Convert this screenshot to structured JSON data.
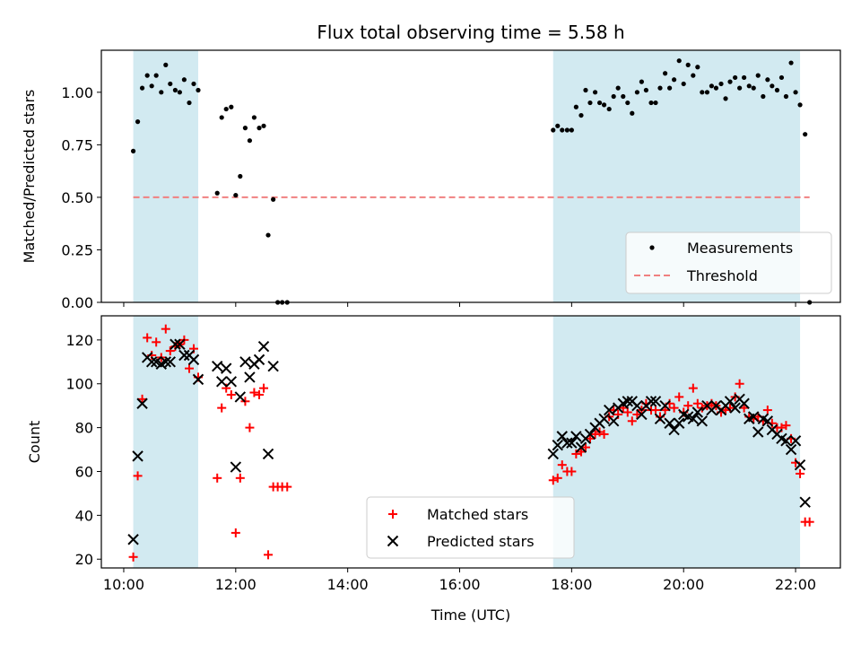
{
  "chart_data": [
    {
      "type": "scatter",
      "title": "Flux total observing time = 5.58 h",
      "xlabel": "",
      "ylabel": "Matched/Predicted stars",
      "xlim": [
        9.6,
        22.8
      ],
      "ylim": [
        0.0,
        1.2
      ],
      "yticks": [
        0.0,
        0.25,
        0.5,
        0.75,
        1.0
      ],
      "ytick_labels": [
        "0.00",
        "0.25",
        "0.50",
        "0.75",
        "1.00"
      ],
      "shaded_spans": [
        [
          10.17,
          11.33
        ],
        [
          17.67,
          22.08
        ]
      ],
      "shade_color": "#add8e6",
      "legend": {
        "location": "lower-right"
      },
      "series": [
        {
          "name": "Measurements",
          "kind": "scatter",
          "marker": "dot",
          "color": "#000000",
          "points": [
            [
              10.17,
              0.72
            ],
            [
              10.25,
              0.86
            ],
            [
              10.33,
              1.02
            ],
            [
              10.42,
              1.08
            ],
            [
              10.5,
              1.03
            ],
            [
              10.58,
              1.08
            ],
            [
              10.67,
              1.0
            ],
            [
              10.75,
              1.13
            ],
            [
              10.83,
              1.04
            ],
            [
              10.92,
              1.01
            ],
            [
              11.0,
              1.0
            ],
            [
              11.08,
              1.06
            ],
            [
              11.17,
              0.95
            ],
            [
              11.25,
              1.04
            ],
            [
              11.33,
              1.01
            ],
            [
              11.67,
              0.52
            ],
            [
              11.75,
              0.88
            ],
            [
              11.83,
              0.92
            ],
            [
              11.92,
              0.93
            ],
            [
              12.0,
              0.51
            ],
            [
              12.08,
              0.6
            ],
            [
              12.17,
              0.83
            ],
            [
              12.25,
              0.77
            ],
            [
              12.33,
              0.88
            ],
            [
              12.42,
              0.83
            ],
            [
              12.5,
              0.84
            ],
            [
              12.58,
              0.32
            ],
            [
              12.67,
              0.49
            ],
            [
              12.75,
              0.0
            ],
            [
              12.83,
              0.0
            ],
            [
              12.92,
              0.0
            ],
            [
              17.67,
              0.82
            ],
            [
              17.75,
              0.84
            ],
            [
              17.83,
              0.82
            ],
            [
              17.92,
              0.82
            ],
            [
              18.0,
              0.82
            ],
            [
              18.08,
              0.93
            ],
            [
              18.17,
              0.89
            ],
            [
              18.25,
              1.01
            ],
            [
              18.33,
              0.95
            ],
            [
              18.42,
              1.0
            ],
            [
              18.5,
              0.95
            ],
            [
              18.58,
              0.94
            ],
            [
              18.67,
              0.92
            ],
            [
              18.75,
              0.98
            ],
            [
              18.83,
              1.02
            ],
            [
              18.92,
              0.98
            ],
            [
              19.0,
              0.95
            ],
            [
              19.08,
              0.9
            ],
            [
              19.17,
              1.0
            ],
            [
              19.25,
              1.05
            ],
            [
              19.33,
              1.01
            ],
            [
              19.42,
              0.95
            ],
            [
              19.5,
              0.95
            ],
            [
              19.58,
              1.02
            ],
            [
              19.67,
              1.09
            ],
            [
              19.75,
              1.02
            ],
            [
              19.83,
              1.06
            ],
            [
              19.92,
              1.15
            ],
            [
              20.0,
              1.04
            ],
            [
              20.08,
              1.13
            ],
            [
              20.17,
              1.08
            ],
            [
              20.25,
              1.12
            ],
            [
              20.33,
              1.0
            ],
            [
              20.42,
              1.0
            ],
            [
              20.5,
              1.03
            ],
            [
              20.58,
              1.02
            ],
            [
              20.67,
              1.04
            ],
            [
              20.75,
              0.97
            ],
            [
              20.83,
              1.05
            ],
            [
              20.92,
              1.07
            ],
            [
              21.0,
              1.02
            ],
            [
              21.08,
              1.07
            ],
            [
              21.17,
              1.03
            ],
            [
              21.25,
              1.02
            ],
            [
              21.33,
              1.08
            ],
            [
              21.42,
              0.98
            ],
            [
              21.5,
              1.06
            ],
            [
              21.58,
              1.03
            ],
            [
              21.67,
              1.01
            ],
            [
              21.75,
              1.07
            ],
            [
              21.83,
              0.98
            ],
            [
              21.92,
              1.14
            ],
            [
              22.0,
              1.0
            ],
            [
              22.08,
              0.94
            ],
            [
              22.17,
              0.8
            ],
            [
              22.25,
              0.0
            ]
          ]
        },
        {
          "name": "Threshold",
          "kind": "hline",
          "y": 0.5,
          "x_range": [
            10.17,
            22.25
          ],
          "color": "#f08080",
          "dash": true
        }
      ]
    },
    {
      "type": "scatter",
      "title": "",
      "xlabel": "Time (UTC)",
      "ylabel": "Count",
      "xlim": [
        9.6,
        22.8
      ],
      "ylim": [
        16,
        131
      ],
      "yticks": [
        20,
        40,
        60,
        80,
        100,
        120
      ],
      "ytick_labels": [
        "20",
        "40",
        "60",
        "80",
        "100",
        "120"
      ],
      "xticks": [
        10,
        12,
        14,
        16,
        18,
        20,
        22
      ],
      "xtick_labels": [
        "10:00",
        "12:00",
        "14:00",
        "16:00",
        "18:00",
        "20:00",
        "22:00"
      ],
      "shaded_spans": [
        [
          10.17,
          11.33
        ],
        [
          17.67,
          22.08
        ]
      ],
      "shade_color": "#add8e6",
      "legend": {
        "location": "lower-center"
      },
      "series": [
        {
          "name": "Matched stars",
          "kind": "scatter",
          "marker": "plus",
          "color": "#ff0000",
          "points": [
            [
              10.17,
              21
            ],
            [
              10.25,
              58
            ],
            [
              10.33,
              93
            ],
            [
              10.42,
              121
            ],
            [
              10.5,
              113
            ],
            [
              10.58,
              119
            ],
            [
              10.67,
              112
            ],
            [
              10.75,
              125
            ],
            [
              10.83,
              115
            ],
            [
              10.92,
              117
            ],
            [
              11.0,
              118
            ],
            [
              11.08,
              120
            ],
            [
              11.17,
              107
            ],
            [
              11.25,
              116
            ],
            [
              11.33,
              103
            ],
            [
              11.67,
              57
            ],
            [
              11.75,
              89
            ],
            [
              11.83,
              98
            ],
            [
              11.92,
              95
            ],
            [
              12.0,
              32
            ],
            [
              12.08,
              57
            ],
            [
              12.17,
              92
            ],
            [
              12.25,
              80
            ],
            [
              12.33,
              96
            ],
            [
              12.42,
              95
            ],
            [
              12.5,
              98
            ],
            [
              12.58,
              22
            ],
            [
              12.67,
              53
            ],
            [
              12.75,
              53
            ],
            [
              12.83,
              53
            ],
            [
              12.92,
              53
            ],
            [
              17.67,
              56
            ],
            [
              17.75,
              57
            ],
            [
              17.83,
              63
            ],
            [
              17.92,
              60
            ],
            [
              18.0,
              60
            ],
            [
              18.08,
              68
            ],
            [
              18.17,
              69
            ],
            [
              18.25,
              71
            ],
            [
              18.33,
              75
            ],
            [
              18.42,
              77
            ],
            [
              18.5,
              78
            ],
            [
              18.58,
              77
            ],
            [
              18.67,
              85
            ],
            [
              18.75,
              88
            ],
            [
              18.83,
              86
            ],
            [
              18.92,
              89
            ],
            [
              19.0,
              87
            ],
            [
              19.08,
              83
            ],
            [
              19.17,
              86
            ],
            [
              19.25,
              88
            ],
            [
              19.33,
              91
            ],
            [
              19.42,
              88
            ],
            [
              19.5,
              88
            ],
            [
              19.58,
              85
            ],
            [
              19.67,
              88
            ],
            [
              19.75,
              91
            ],
            [
              19.83,
              89
            ],
            [
              19.92,
              94
            ],
            [
              20.0,
              87
            ],
            [
              20.08,
              90
            ],
            [
              20.17,
              98
            ],
            [
              20.25,
              91
            ],
            [
              20.33,
              89
            ],
            [
              20.42,
              90
            ],
            [
              20.5,
              91
            ],
            [
              20.58,
              90
            ],
            [
              20.67,
              87
            ],
            [
              20.75,
              88
            ],
            [
              20.83,
              89
            ],
            [
              20.92,
              94
            ],
            [
              21.0,
              100
            ],
            [
              21.08,
              89
            ],
            [
              21.17,
              85
            ],
            [
              21.25,
              84
            ],
            [
              21.33,
              85
            ],
            [
              21.42,
              83
            ],
            [
              21.5,
              88
            ],
            [
              21.58,
              82
            ],
            [
              21.67,
              80
            ],
            [
              21.75,
              80
            ],
            [
              21.83,
              81
            ],
            [
              21.92,
              75
            ],
            [
              22.0,
              64
            ],
            [
              22.08,
              59
            ],
            [
              22.17,
              37
            ],
            [
              22.25,
              37
            ]
          ]
        },
        {
          "name": "Predicted stars",
          "kind": "scatter",
          "marker": "x",
          "color": "#000000",
          "points": [
            [
              10.17,
              29
            ],
            [
              10.25,
              67
            ],
            [
              10.33,
              91
            ],
            [
              10.42,
              112
            ],
            [
              10.5,
              110
            ],
            [
              10.58,
              110
            ],
            [
              10.67,
              109
            ],
            [
              10.75,
              110
            ],
            [
              10.83,
              110
            ],
            [
              10.92,
              118
            ],
            [
              11.0,
              118
            ],
            [
              11.08,
              113
            ],
            [
              11.17,
              113
            ],
            [
              11.25,
              111
            ],
            [
              11.33,
              102
            ],
            [
              11.67,
              108
            ],
            [
              11.75,
              101
            ],
            [
              11.83,
              107
            ],
            [
              11.92,
              101
            ],
            [
              12.0,
              62
            ],
            [
              12.08,
              94
            ],
            [
              12.17,
              110
            ],
            [
              12.25,
              103
            ],
            [
              12.33,
              109
            ],
            [
              12.42,
              111
            ],
            [
              12.5,
              117
            ],
            [
              12.58,
              68
            ],
            [
              12.67,
              108
            ],
            [
              17.67,
              68
            ],
            [
              17.75,
              72
            ],
            [
              17.83,
              76
            ],
            [
              17.92,
              73
            ],
            [
              18.0,
              73
            ],
            [
              18.08,
              76
            ],
            [
              18.17,
              71
            ],
            [
              18.25,
              75
            ],
            [
              18.33,
              77
            ],
            [
              18.42,
              80
            ],
            [
              18.5,
              82
            ],
            [
              18.58,
              84
            ],
            [
              18.67,
              88
            ],
            [
              18.75,
              83
            ],
            [
              18.83,
              89
            ],
            [
              18.92,
              91
            ],
            [
              19.0,
              92
            ],
            [
              19.08,
              92
            ],
            [
              19.17,
              90
            ],
            [
              19.25,
              86
            ],
            [
              19.33,
              90
            ],
            [
              19.42,
              92
            ],
            [
              19.5,
              92
            ],
            [
              19.58,
              84
            ],
            [
              19.67,
              90
            ],
            [
              19.75,
              82
            ],
            [
              19.83,
              79
            ],
            [
              19.92,
              82
            ],
            [
              20.0,
              86
            ],
            [
              20.08,
              85
            ],
            [
              20.17,
              84
            ],
            [
              20.25,
              87
            ],
            [
              20.33,
              83
            ],
            [
              20.42,
              90
            ],
            [
              20.5,
              88
            ],
            [
              20.58,
              90
            ],
            [
              20.67,
              88
            ],
            [
              20.75,
              90
            ],
            [
              20.83,
              92
            ],
            [
              20.92,
              89
            ],
            [
              21.0,
              93
            ],
            [
              21.08,
              91
            ],
            [
              21.17,
              84
            ],
            [
              21.25,
              85
            ],
            [
              21.33,
              78
            ],
            [
              21.42,
              84
            ],
            [
              21.5,
              83
            ],
            [
              21.58,
              79
            ],
            [
              21.67,
              77
            ],
            [
              21.75,
              75
            ],
            [
              21.83,
              74
            ],
            [
              21.92,
              70
            ],
            [
              22.0,
              74
            ],
            [
              22.08,
              63
            ],
            [
              22.17,
              46
            ]
          ]
        }
      ]
    }
  ]
}
